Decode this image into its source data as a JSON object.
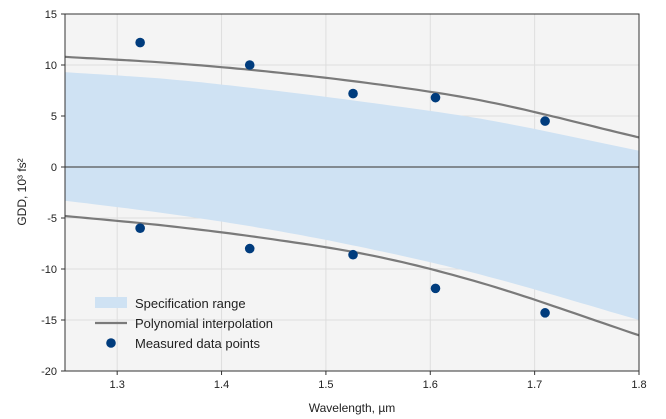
{
  "chart_data": {
    "type": "scatter",
    "title": "",
    "xlabel": "Wavelength, µm",
    "ylabel": "GDD, 10³ fs²",
    "xlim": [
      1.25,
      1.8
    ],
    "ylim": [
      -20,
      15
    ],
    "xticks": [
      1.3,
      1.4,
      1.5,
      1.6,
      1.7,
      1.8
    ],
    "yticks": [
      -20,
      -15,
      -10,
      -5,
      0,
      5,
      10,
      15
    ],
    "grid": true,
    "legend_position": "lower-left",
    "zero_line": true,
    "colors": {
      "spec_fill": "#cfe2f3",
      "curve": "#7a7a7a",
      "points": "#003c7d",
      "plot_bg": "#f4f4f4",
      "grid": "#dedede",
      "zero_line": "#555555"
    },
    "legend": [
      {
        "key": "spec",
        "label": "Specification range"
      },
      {
        "key": "curve",
        "label": "Polynomial interpolation"
      },
      {
        "key": "points",
        "label": "Measured data points"
      }
    ],
    "series": [
      {
        "key": "spec",
        "kind": "band",
        "name": "Specification range",
        "x": [
          1.25,
          1.35,
          1.45,
          1.55,
          1.65,
          1.8
        ],
        "upper": [
          9.3,
          8.6,
          7.5,
          6.2,
          4.7,
          1.6
        ],
        "lower": [
          -3.3,
          -4.6,
          -6.2,
          -8.2,
          -10.6,
          -15.0
        ]
      },
      {
        "key": "curve_upper",
        "kind": "line",
        "name": "Polynomial interpolation",
        "x": [
          1.25,
          1.35,
          1.45,
          1.55,
          1.65,
          1.8
        ],
        "y": [
          10.8,
          10.2,
          9.3,
          8.1,
          6.5,
          2.9
        ]
      },
      {
        "key": "curve_lower",
        "kind": "line",
        "name": "Polynomial interpolation",
        "x": [
          1.25,
          1.35,
          1.45,
          1.55,
          1.65,
          1.8
        ],
        "y": [
          -4.8,
          -5.8,
          -7.1,
          -8.8,
          -11.4,
          -16.5
        ]
      },
      {
        "key": "points_upper",
        "kind": "scatter",
        "name": "Measured data points",
        "x": [
          1.322,
          1.427,
          1.526,
          1.605,
          1.71
        ],
        "y": [
          12.2,
          10.0,
          7.2,
          6.8,
          4.5
        ]
      },
      {
        "key": "points_lower",
        "kind": "scatter",
        "name": "Measured data points",
        "x": [
          1.322,
          1.427,
          1.526,
          1.605,
          1.71
        ],
        "y": [
          -6.0,
          -8.0,
          -8.6,
          -11.9,
          -14.3
        ]
      }
    ]
  }
}
